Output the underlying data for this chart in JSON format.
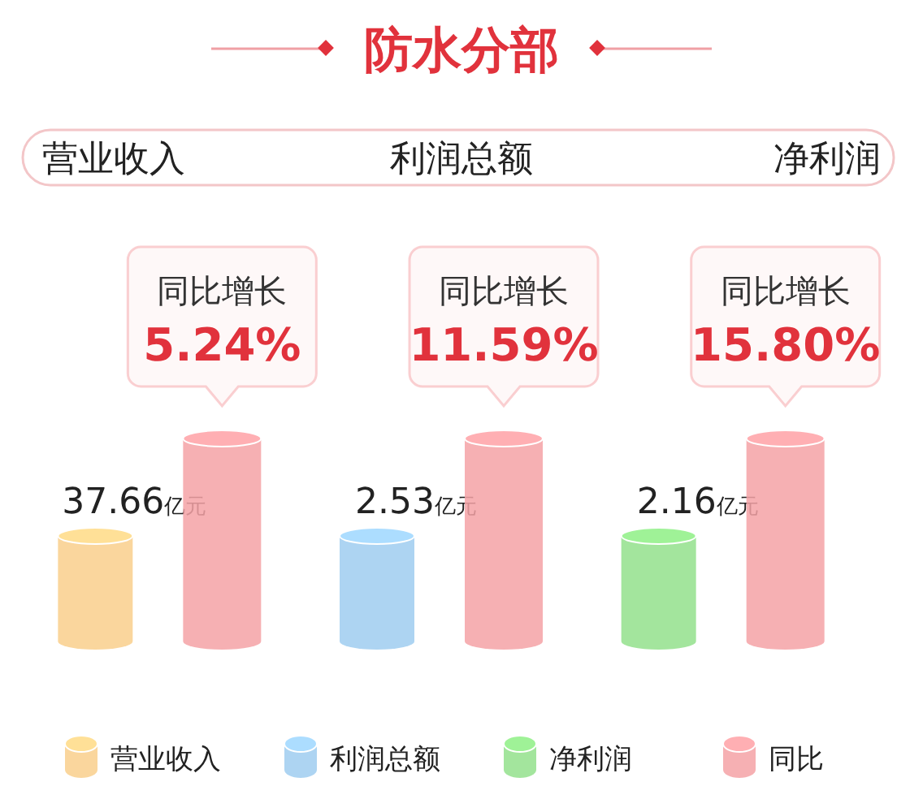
{
  "chart_data": {
    "type": "other",
    "title": "防水分部",
    "categories": [
      "营业收入",
      "利润总额",
      "净利润"
    ],
    "series": [
      {
        "colors": [
          "#f9cf8c",
          "#9fcdf0",
          "#93e08c"
        ],
        "values": [
          37.66,
          2.53,
          2.16
        ],
        "value_labels": [
          "37.66亿元",
          "2.53亿元",
          "2.16亿元"
        ]
      },
      {
        "name": "同比",
        "color": "#f5a2a6",
        "values": [
          5.24,
          11.59,
          15.8
        ],
        "value_labels": [
          "5.24%",
          "11.59%",
          "15.80%"
        ]
      }
    ],
    "annotations": [
      {
        "text": "同比增长",
        "x": "营业收入"
      },
      {
        "text": "同比增长",
        "x": "利润总额"
      },
      {
        "text": "同比增长",
        "x": "净利润"
      }
    ],
    "legend": "bottom"
  }
}
